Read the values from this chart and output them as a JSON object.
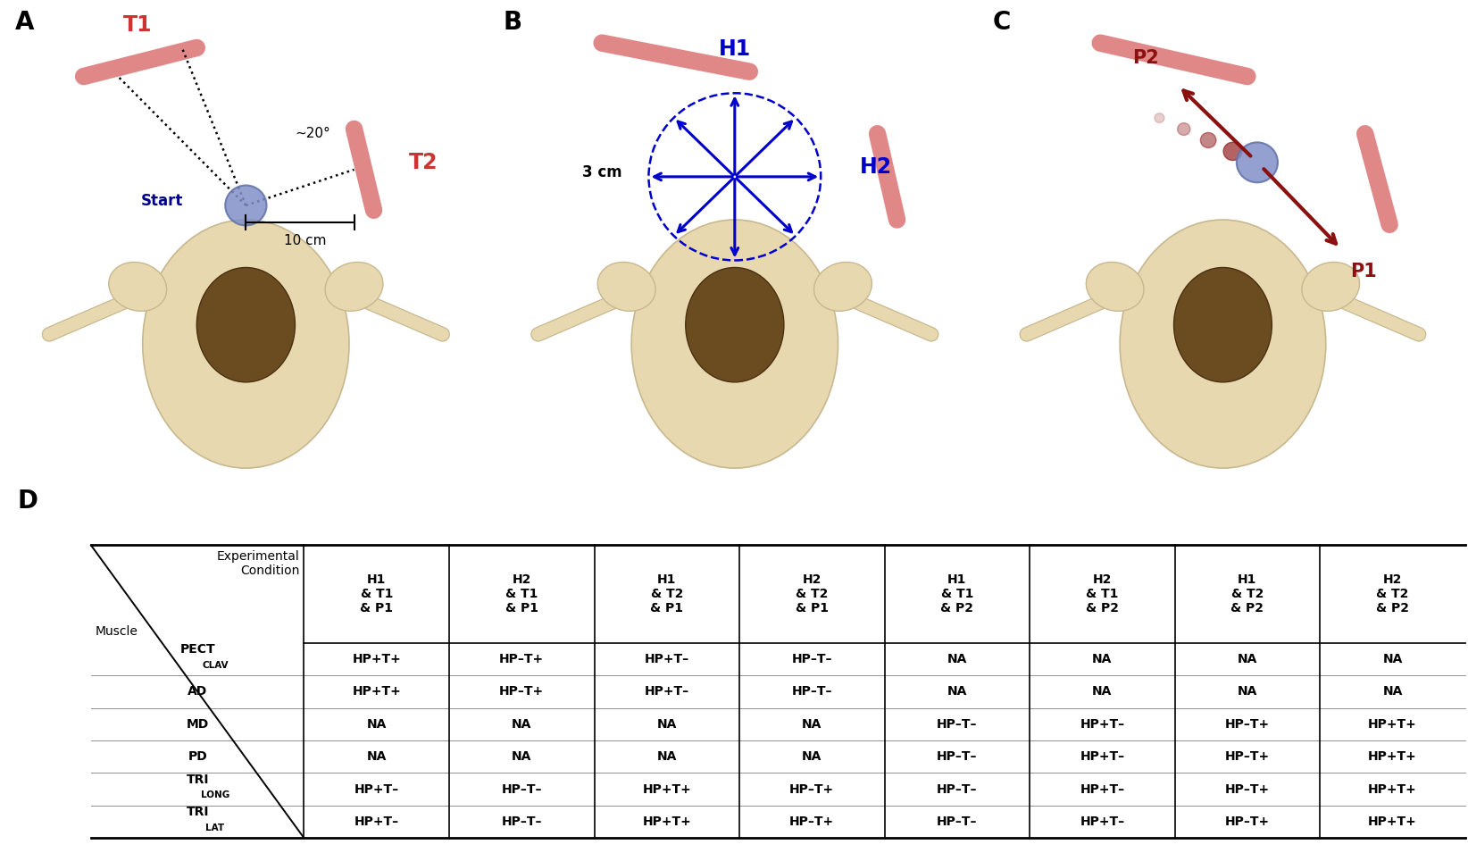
{
  "panel_label_fontsize": 20,
  "panel_label_color": "#000000",
  "panel_label_weight": "bold",
  "T_color": "#e8808080",
  "T_bar_color": "#e87878a0",
  "H_color": "#0000cc",
  "P_color": "#8b1010",
  "start_color": "#00008b",
  "bar_color": "#d98080",
  "bar_alpha": 0.85,
  "background_color": "#ffffff",
  "col_header_texts": [
    "H1\n& T1\n& P1",
    "H2\n& T1\n& P1",
    "H1\n& T2\n& P1",
    "H2\n& T2\n& P1",
    "H1\n& T1\n& P2",
    "H2\n& T1\n& P2",
    "H1\n& T2\n& P2",
    "H2\n& T2\n& P2"
  ],
  "table_muscle_bases": [
    "PECT",
    "AD",
    "MD",
    "PD",
    "TRI",
    "TRI"
  ],
  "table_muscle_subscripts": [
    "CLAV",
    "",
    "",
    "",
    "LONG",
    "LAT"
  ],
  "table_data": [
    [
      "HP+T+",
      "HP–T+",
      "HP+T–",
      "HP–T–",
      "NA",
      "NA",
      "NA",
      "NA"
    ],
    [
      "HP+T+",
      "HP–T+",
      "HP+T–",
      "HP–T–",
      "NA",
      "NA",
      "NA",
      "NA"
    ],
    [
      "NA",
      "NA",
      "NA",
      "NA",
      "HP–T–",
      "HP+T–",
      "HP–T+",
      "HP+T+"
    ],
    [
      "NA",
      "NA",
      "NA",
      "NA",
      "HP–T–",
      "HP+T–",
      "HP–T+",
      "HP+T+"
    ],
    [
      "HP+T–",
      "HP–T–",
      "HP+T+",
      "HP–T+",
      "HP–T–",
      "HP+T–",
      "HP–T+",
      "HP+T+"
    ],
    [
      "HP+T–",
      "HP–T–",
      "HP+T+",
      "HP–T+",
      "HP–T–",
      "HP+T–",
      "HP–T+",
      "HP+T+"
    ]
  ]
}
